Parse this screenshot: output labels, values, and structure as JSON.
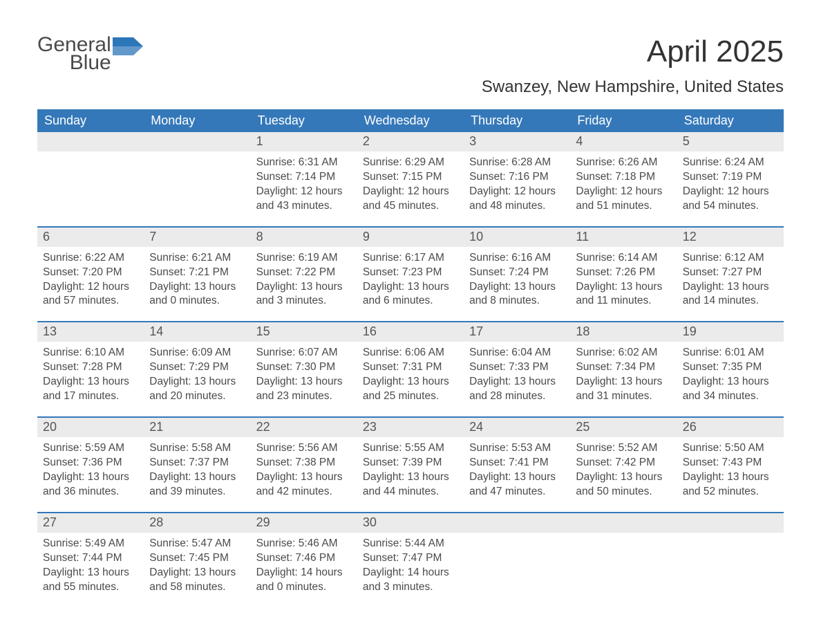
{
  "logo": {
    "general": "General",
    "blue": "Blue"
  },
  "title": "April 2025",
  "location": "Swanzey, New Hampshire, United States",
  "colors": {
    "header_bg": "#3478b9",
    "header_text": "#ffffff",
    "date_bar_bg": "#ebebeb",
    "text": "#4a4a4a",
    "title_text": "#333333",
    "logo_blue": "#2c77b8",
    "page_bg": "#ffffff",
    "row_border": "#3478b9"
  },
  "typography": {
    "title_fontsize": 44,
    "location_fontsize": 24,
    "day_header_fontsize": 18,
    "date_num_fontsize": 18,
    "body_fontsize": 15.5,
    "logo_fontsize": 30
  },
  "day_labels": [
    "Sunday",
    "Monday",
    "Tuesday",
    "Wednesday",
    "Thursday",
    "Friday",
    "Saturday"
  ],
  "labels": {
    "sunrise": "Sunrise: ",
    "sunset": "Sunset: ",
    "daylight": "Daylight: "
  },
  "weeks": [
    [
      {
        "empty": true
      },
      {
        "empty": true
      },
      {
        "date": "1",
        "sunrise": "6:31 AM",
        "sunset": "7:14 PM",
        "daylight": "12 hours and 43 minutes."
      },
      {
        "date": "2",
        "sunrise": "6:29 AM",
        "sunset": "7:15 PM",
        "daylight": "12 hours and 45 minutes."
      },
      {
        "date": "3",
        "sunrise": "6:28 AM",
        "sunset": "7:16 PM",
        "daylight": "12 hours and 48 minutes."
      },
      {
        "date": "4",
        "sunrise": "6:26 AM",
        "sunset": "7:18 PM",
        "daylight": "12 hours and 51 minutes."
      },
      {
        "date": "5",
        "sunrise": "6:24 AM",
        "sunset": "7:19 PM",
        "daylight": "12 hours and 54 minutes."
      }
    ],
    [
      {
        "date": "6",
        "sunrise": "6:22 AM",
        "sunset": "7:20 PM",
        "daylight": "12 hours and 57 minutes."
      },
      {
        "date": "7",
        "sunrise": "6:21 AM",
        "sunset": "7:21 PM",
        "daylight": "13 hours and 0 minutes."
      },
      {
        "date": "8",
        "sunrise": "6:19 AM",
        "sunset": "7:22 PM",
        "daylight": "13 hours and 3 minutes."
      },
      {
        "date": "9",
        "sunrise": "6:17 AM",
        "sunset": "7:23 PM",
        "daylight": "13 hours and 6 minutes."
      },
      {
        "date": "10",
        "sunrise": "6:16 AM",
        "sunset": "7:24 PM",
        "daylight": "13 hours and 8 minutes."
      },
      {
        "date": "11",
        "sunrise": "6:14 AM",
        "sunset": "7:26 PM",
        "daylight": "13 hours and 11 minutes."
      },
      {
        "date": "12",
        "sunrise": "6:12 AM",
        "sunset": "7:27 PM",
        "daylight": "13 hours and 14 minutes."
      }
    ],
    [
      {
        "date": "13",
        "sunrise": "6:10 AM",
        "sunset": "7:28 PM",
        "daylight": "13 hours and 17 minutes."
      },
      {
        "date": "14",
        "sunrise": "6:09 AM",
        "sunset": "7:29 PM",
        "daylight": "13 hours and 20 minutes."
      },
      {
        "date": "15",
        "sunrise": "6:07 AM",
        "sunset": "7:30 PM",
        "daylight": "13 hours and 23 minutes."
      },
      {
        "date": "16",
        "sunrise": "6:06 AM",
        "sunset": "7:31 PM",
        "daylight": "13 hours and 25 minutes."
      },
      {
        "date": "17",
        "sunrise": "6:04 AM",
        "sunset": "7:33 PM",
        "daylight": "13 hours and 28 minutes."
      },
      {
        "date": "18",
        "sunrise": "6:02 AM",
        "sunset": "7:34 PM",
        "daylight": "13 hours and 31 minutes."
      },
      {
        "date": "19",
        "sunrise": "6:01 AM",
        "sunset": "7:35 PM",
        "daylight": "13 hours and 34 minutes."
      }
    ],
    [
      {
        "date": "20",
        "sunrise": "5:59 AM",
        "sunset": "7:36 PM",
        "daylight": "13 hours and 36 minutes."
      },
      {
        "date": "21",
        "sunrise": "5:58 AM",
        "sunset": "7:37 PM",
        "daylight": "13 hours and 39 minutes."
      },
      {
        "date": "22",
        "sunrise": "5:56 AM",
        "sunset": "7:38 PM",
        "daylight": "13 hours and 42 minutes."
      },
      {
        "date": "23",
        "sunrise": "5:55 AM",
        "sunset": "7:39 PM",
        "daylight": "13 hours and 44 minutes."
      },
      {
        "date": "24",
        "sunrise": "5:53 AM",
        "sunset": "7:41 PM",
        "daylight": "13 hours and 47 minutes."
      },
      {
        "date": "25",
        "sunrise": "5:52 AM",
        "sunset": "7:42 PM",
        "daylight": "13 hours and 50 minutes."
      },
      {
        "date": "26",
        "sunrise": "5:50 AM",
        "sunset": "7:43 PM",
        "daylight": "13 hours and 52 minutes."
      }
    ],
    [
      {
        "date": "27",
        "sunrise": "5:49 AM",
        "sunset": "7:44 PM",
        "daylight": "13 hours and 55 minutes."
      },
      {
        "date": "28",
        "sunrise": "5:47 AM",
        "sunset": "7:45 PM",
        "daylight": "13 hours and 58 minutes."
      },
      {
        "date": "29",
        "sunrise": "5:46 AM",
        "sunset": "7:46 PM",
        "daylight": "14 hours and 0 minutes."
      },
      {
        "date": "30",
        "sunrise": "5:44 AM",
        "sunset": "7:47 PM",
        "daylight": "14 hours and 3 minutes."
      },
      {
        "empty": true
      },
      {
        "empty": true
      },
      {
        "empty": true
      }
    ]
  ]
}
